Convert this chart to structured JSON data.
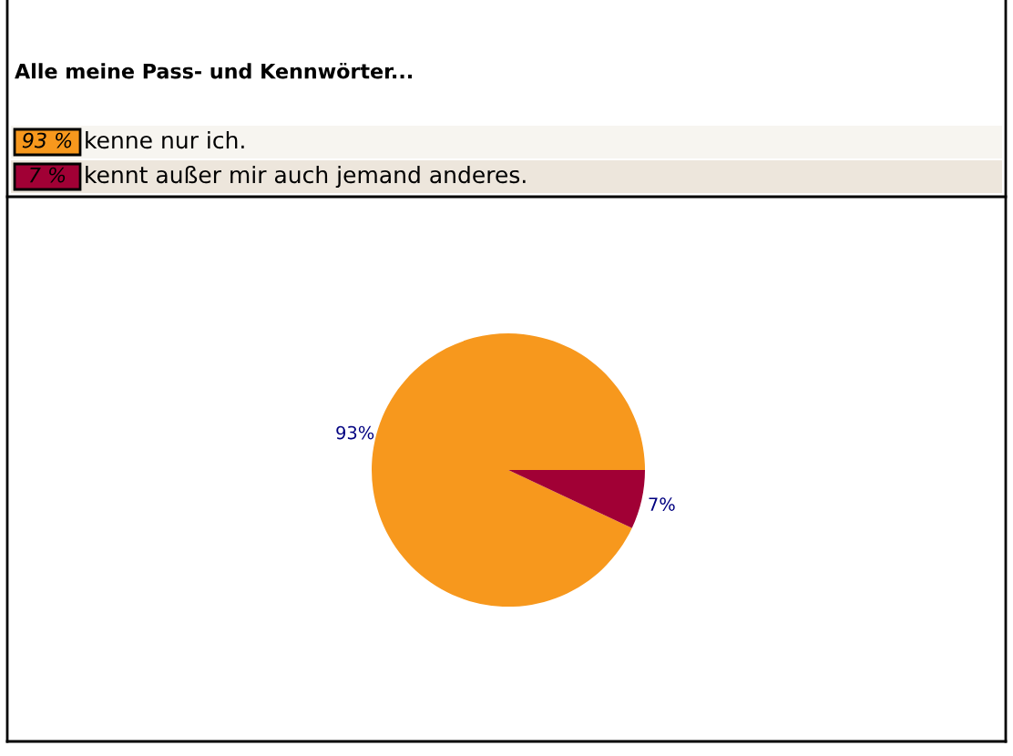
{
  "chart_data": {
    "type": "pie",
    "title": "Alle meine Pass- und Kennwörter...",
    "categories": [
      "kenne nur ich.",
      "kennt außer mir auch jemand anderes."
    ],
    "values": [
      93,
      7
    ],
    "colors": [
      "#f7981d",
      "#a10035"
    ],
    "value_labels": [
      "93%",
      "7%"
    ],
    "annotations": [
      "93 %",
      "7 %"
    ],
    "legend": "top left"
  }
}
